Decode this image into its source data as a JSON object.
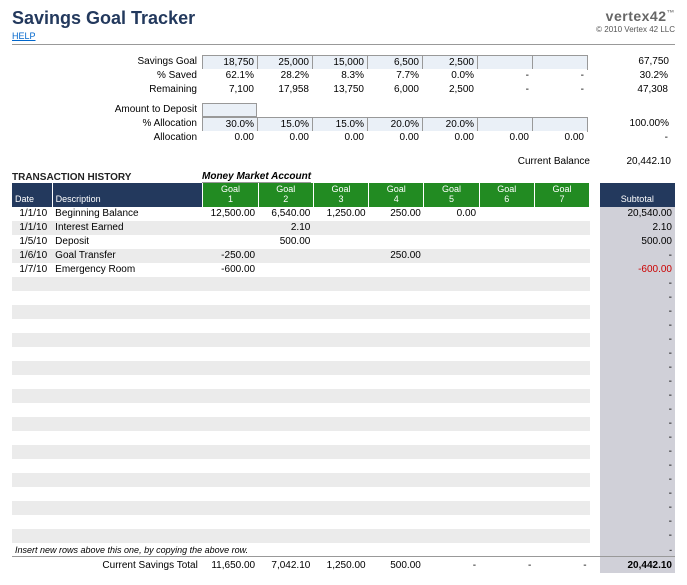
{
  "header": {
    "title": "Savings Goal Tracker",
    "help": "HELP",
    "logo": "vertex42",
    "copyright": "© 2010 Vertex 42 LLC"
  },
  "summary": {
    "savings_goal": {
      "label": "Savings Goal",
      "cells": [
        "18,750",
        "25,000",
        "15,000",
        "6,500",
        "2,500",
        "",
        ""
      ],
      "total": "67,750"
    },
    "pct_saved": {
      "label": "% Saved",
      "cells": [
        "62.1%",
        "28.2%",
        "8.3%",
        "7.7%",
        "0.0%",
        "-",
        "-"
      ],
      "total": "30.2%"
    },
    "remaining": {
      "label": "Remaining",
      "cells": [
        "7,100",
        "17,958",
        "13,750",
        "6,000",
        "2,500",
        "-",
        "-"
      ],
      "total": "47,308"
    },
    "amount_to_deposit": {
      "label": "Amount to Deposit",
      "value": ""
    },
    "pct_allocation": {
      "label": "% Allocation",
      "cells": [
        "30.0%",
        "15.0%",
        "15.0%",
        "20.0%",
        "20.0%",
        "",
        ""
      ],
      "total": "100.00%"
    },
    "allocation": {
      "label": "Allocation",
      "cells": [
        "0.00",
        "0.00",
        "0.00",
        "0.00",
        "0.00",
        "0.00",
        "0.00"
      ],
      "total": "-"
    }
  },
  "current_balance": {
    "label": "Current Balance",
    "value": "20,442.10"
  },
  "transaction_history": {
    "label": "TRANSACTION HISTORY",
    "account": "Money Market Account",
    "headers": {
      "date": "Date",
      "description": "Description",
      "subtotal": "Subtotal"
    },
    "goal_headers": [
      "Goal\n1",
      "Goal\n2",
      "Goal\n3",
      "Goal\n4",
      "Goal\n5",
      "Goal\n6",
      "Goal\n7"
    ],
    "rows": [
      {
        "date": "1/1/10",
        "desc": "Beginning Balance",
        "g": [
          "12,500.00",
          "6,540.00",
          "1,250.00",
          "250.00",
          "0.00",
          "",
          ""
        ],
        "sub": "20,540.00"
      },
      {
        "date": "1/1/10",
        "desc": "Interest Earned",
        "g": [
          "",
          "2.10",
          "",
          "",
          "",
          "",
          ""
        ],
        "sub": "2.10"
      },
      {
        "date": "1/5/10",
        "desc": "Deposit",
        "g": [
          "",
          "500.00",
          "",
          "",
          "",
          "",
          ""
        ],
        "sub": "500.00"
      },
      {
        "date": "1/6/10",
        "desc": "Goal Transfer",
        "g": [
          "-250.00",
          "",
          "",
          "250.00",
          "",
          "",
          ""
        ],
        "sub": "-"
      },
      {
        "date": "1/7/10",
        "desc": "Emergency Room",
        "g": [
          "-600.00",
          "",
          "",
          "",
          "",
          "",
          ""
        ],
        "sub": "-600.00",
        "neg": true
      }
    ],
    "empty_rows": 19,
    "instruction": "Insert new rows above this one, by copying the above row.",
    "footer": {
      "label": "Current Savings Total",
      "g": [
        "11,650.00",
        "7,042.10",
        "1,250.00",
        "500.00",
        "-",
        "-",
        "-"
      ],
      "sub": "20,442.10"
    }
  }
}
